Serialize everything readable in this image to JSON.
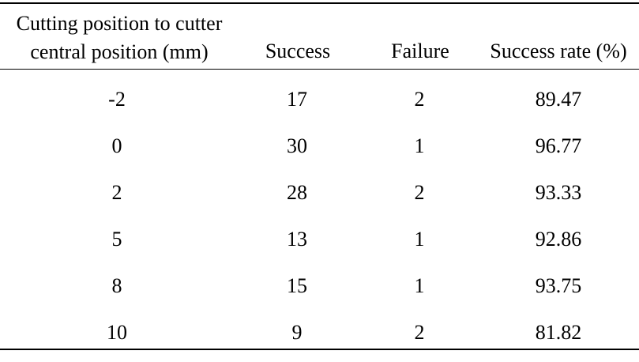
{
  "table": {
    "headers": {
      "position_line1": "Cutting position to cutter",
      "position_line2": "central position (mm)",
      "success": "Success",
      "failure": "Failure",
      "rate": "Success rate (%)"
    },
    "rows": [
      {
        "position": "-2",
        "success": "17",
        "failure": "2",
        "rate": "89.47"
      },
      {
        "position": "0",
        "success": "30",
        "failure": "1",
        "rate": "96.77"
      },
      {
        "position": "2",
        "success": "28",
        "failure": "2",
        "rate": "93.33"
      },
      {
        "position": "5",
        "success": "13",
        "failure": "1",
        "rate": "92.86"
      },
      {
        "position": "8",
        "success": "15",
        "failure": "1",
        "rate": "93.75"
      },
      {
        "position": "10",
        "success": "9",
        "failure": "2",
        "rate": "81.82"
      }
    ]
  }
}
